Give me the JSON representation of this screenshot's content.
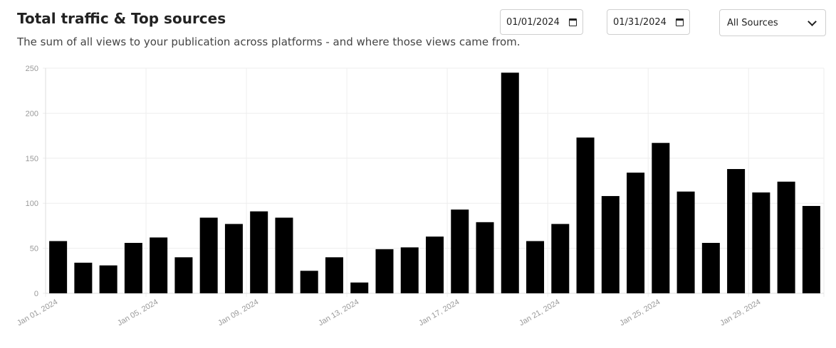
{
  "header": {
    "title": "Total traffic & Top sources",
    "subtitle": "The sum of all views to your publication across platforms - and where those views came from."
  },
  "filters": {
    "start_date": "01/01/2024",
    "end_date": "01/31/2024",
    "source": "All Sources"
  },
  "icons": {
    "date": "calendar-icon",
    "select": "chevron-down-icon"
  },
  "colors": {
    "bar": "#000000",
    "grid": "#eeeeee",
    "tick": "#999999"
  },
  "chart_data": {
    "type": "bar",
    "title": "",
    "xlabel": "",
    "ylabel": "",
    "ylim": [
      0,
      250
    ],
    "yticks": [
      0,
      50,
      100,
      150,
      200,
      250
    ],
    "grid": true,
    "categories": [
      "Jan 01, 2024",
      "Jan 02, 2024",
      "Jan 03, 2024",
      "Jan 04, 2024",
      "Jan 05, 2024",
      "Jan 06, 2024",
      "Jan 07, 2024",
      "Jan 08, 2024",
      "Jan 09, 2024",
      "Jan 10, 2024",
      "Jan 11, 2024",
      "Jan 12, 2024",
      "Jan 13, 2024",
      "Jan 14, 2024",
      "Jan 15, 2024",
      "Jan 16, 2024",
      "Jan 17, 2024",
      "Jan 18, 2024",
      "Jan 19, 2024",
      "Jan 20, 2024",
      "Jan 21, 2024",
      "Jan 22, 2024",
      "Jan 23, 2024",
      "Jan 24, 2024",
      "Jan 25, 2024",
      "Jan 26, 2024",
      "Jan 27, 2024",
      "Jan 28, 2024",
      "Jan 29, 2024",
      "Jan 30, 2024",
      "Jan 31, 2024"
    ],
    "shown_x_labels": [
      "Jan 01, 2024",
      "Jan 05, 2024",
      "Jan 09, 2024",
      "Jan 13, 2024",
      "Jan 17, 2024",
      "Jan 21, 2024",
      "Jan 25, 2024",
      "Jan 29, 2024"
    ],
    "values": [
      58,
      34,
      31,
      56,
      62,
      40,
      84,
      77,
      91,
      84,
      25,
      40,
      12,
      49,
      51,
      63,
      93,
      79,
      245,
      58,
      77,
      173,
      108,
      134,
      167,
      113,
      56,
      138,
      112,
      124,
      97
    ]
  }
}
